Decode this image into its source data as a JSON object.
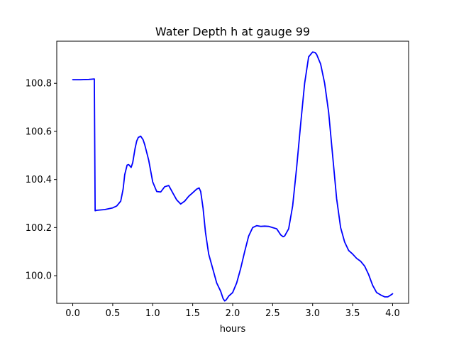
{
  "chart_data": {
    "type": "line",
    "title": "Water Depth h at gauge 99",
    "xlabel": "hours",
    "ylabel": "",
    "xlim": [
      -0.2,
      4.2
    ],
    "ylim": [
      99.885,
      100.975
    ],
    "xticks": [
      0.0,
      0.5,
      1.0,
      1.5,
      2.0,
      2.5,
      3.0,
      3.5,
      4.0
    ],
    "xtick_labels": [
      "0.0",
      "0.5",
      "1.0",
      "1.5",
      "2.0",
      "2.5",
      "3.0",
      "3.5",
      "4.0"
    ],
    "yticks": [
      100.0,
      100.2,
      100.4,
      100.6,
      100.8
    ],
    "ytick_labels": [
      "100.0",
      "100.2",
      "100.4",
      "100.6",
      "100.8"
    ],
    "grid": false,
    "series": [
      {
        "color": "#0000ff",
        "x": [
          0.0,
          0.1,
          0.2,
          0.27,
          0.28,
          0.3,
          0.4,
          0.5,
          0.55,
          0.6,
          0.63,
          0.65,
          0.68,
          0.7,
          0.73,
          0.75,
          0.78,
          0.8,
          0.82,
          0.85,
          0.88,
          0.9,
          0.95,
          1.0,
          1.05,
          1.1,
          1.15,
          1.2,
          1.25,
          1.3,
          1.35,
          1.4,
          1.45,
          1.5,
          1.55,
          1.58,
          1.6,
          1.63,
          1.66,
          1.7,
          1.75,
          1.8,
          1.85,
          1.88,
          1.9,
          1.92,
          1.95,
          2.0,
          2.05,
          2.1,
          2.15,
          2.2,
          2.25,
          2.3,
          2.35,
          2.4,
          2.45,
          2.5,
          2.55,
          2.6,
          2.63,
          2.65,
          2.7,
          2.75,
          2.8,
          2.85,
          2.9,
          2.95,
          3.0,
          3.03,
          3.05,
          3.1,
          3.15,
          3.2,
          3.25,
          3.3,
          3.35,
          3.4,
          3.45,
          3.5,
          3.55,
          3.6,
          3.65,
          3.7,
          3.75,
          3.8,
          3.85,
          3.9,
          3.94,
          3.97,
          4.0
        ],
        "y": [
          100.815,
          100.815,
          100.816,
          100.818,
          100.27,
          100.272,
          100.275,
          100.282,
          100.29,
          100.31,
          100.36,
          100.42,
          100.46,
          100.462,
          100.45,
          100.47,
          100.53,
          100.56,
          100.575,
          100.58,
          100.565,
          100.545,
          100.48,
          100.39,
          100.35,
          100.348,
          100.37,
          100.375,
          100.345,
          100.315,
          100.298,
          100.31,
          100.33,
          100.345,
          100.36,
          100.365,
          100.35,
          100.28,
          100.18,
          100.09,
          100.03,
          99.97,
          99.935,
          99.905,
          99.895,
          99.9,
          99.915,
          99.93,
          99.97,
          100.03,
          100.1,
          100.165,
          100.2,
          100.208,
          100.205,
          100.206,
          100.205,
          100.2,
          100.195,
          100.17,
          100.162,
          100.165,
          100.195,
          100.29,
          100.45,
          100.63,
          100.8,
          100.91,
          100.93,
          100.928,
          100.92,
          100.88,
          100.8,
          100.68,
          100.5,
          100.32,
          100.2,
          100.14,
          100.105,
          100.09,
          100.072,
          100.06,
          100.04,
          100.005,
          99.96,
          99.93,
          99.92,
          99.912,
          99.912,
          99.918,
          99.925
        ]
      }
    ]
  }
}
